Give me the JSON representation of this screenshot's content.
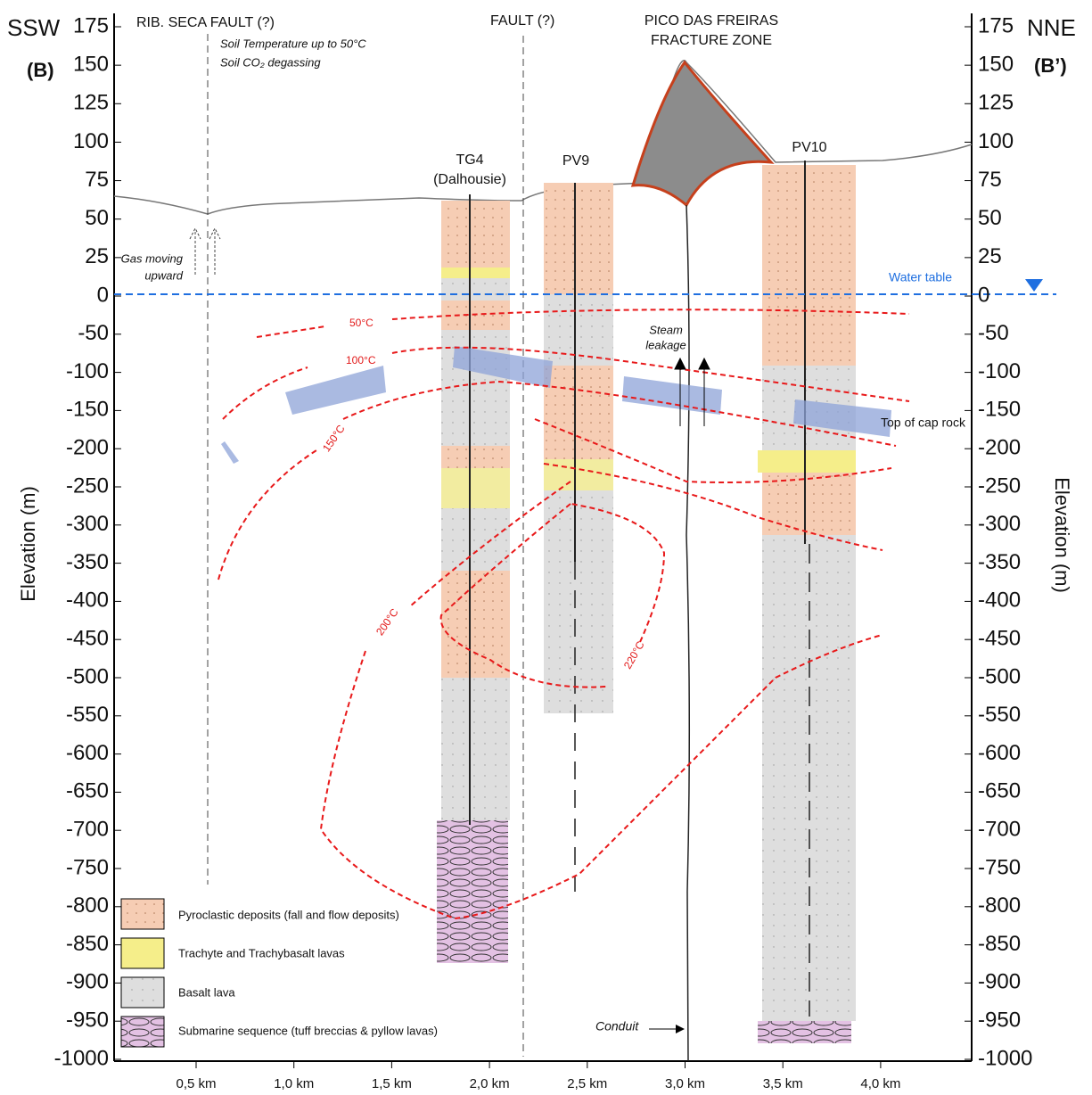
{
  "labels": {
    "ssw": "SSW",
    "b_left": "(B)",
    "nne": "NNE",
    "b_right": "(B’)",
    "rib_fault": "RIB. SECA FAULT (?)",
    "soil_temp": "Soil Temperature up to 50°C",
    "soil_co2": "Soil CO₂ degassing",
    "fault": "FAULT (?)",
    "pico": [
      "PICO DAS FREIRAS",
      "FRACTURE ZONE"
    ],
    "gas": [
      "Gas moving",
      "upward"
    ],
    "water_table": "Water table",
    "steam": [
      "Steam",
      "leakage"
    ],
    "cap_rock": "Top of cap rock",
    "conduit": "Conduit",
    "y_label_left": "Elevation (m)",
    "y_label_right": "Elevation (m)"
  },
  "wells": [
    {
      "name": "TG4",
      "sub": "(Dalhousie)"
    },
    {
      "name": "PV9"
    },
    {
      "name": "PV10"
    }
  ],
  "isotherms": [
    "50°C",
    "100°C",
    "150°C",
    "200°C",
    "220°C"
  ],
  "legend": [
    "Pyroclastic deposits (fall and flow deposits)",
    "Trachyte and Trachybasalt lavas",
    "Basalt lava",
    "Submarine sequence (tuff breccias & pyllow lavas)"
  ],
  "yticks": [
    175,
    150,
    125,
    100,
    75,
    50,
    25,
    0,
    -50,
    -100,
    -150,
    -200,
    -250,
    -300,
    -350,
    -400,
    -450,
    -500,
    -550,
    -600,
    -650,
    -700,
    -750,
    -800,
    -850,
    -900,
    -950,
    -1000
  ],
  "xticks": [
    {
      "value": 0.5,
      "label": "0,5 km"
    },
    {
      "value": 1.0,
      "label": "1,0 km"
    },
    {
      "value": 1.5,
      "label": "1,5 km"
    },
    {
      "value": 2.0,
      "label": "2,0 km"
    },
    {
      "value": 2.5,
      "label": "2,5 km"
    },
    {
      "value": 3.0,
      "label": "3,0 km"
    },
    {
      "value": 3.5,
      "label": "3,5 km"
    },
    {
      "value": 4.0,
      "label": "4,0 km"
    }
  ]
}
